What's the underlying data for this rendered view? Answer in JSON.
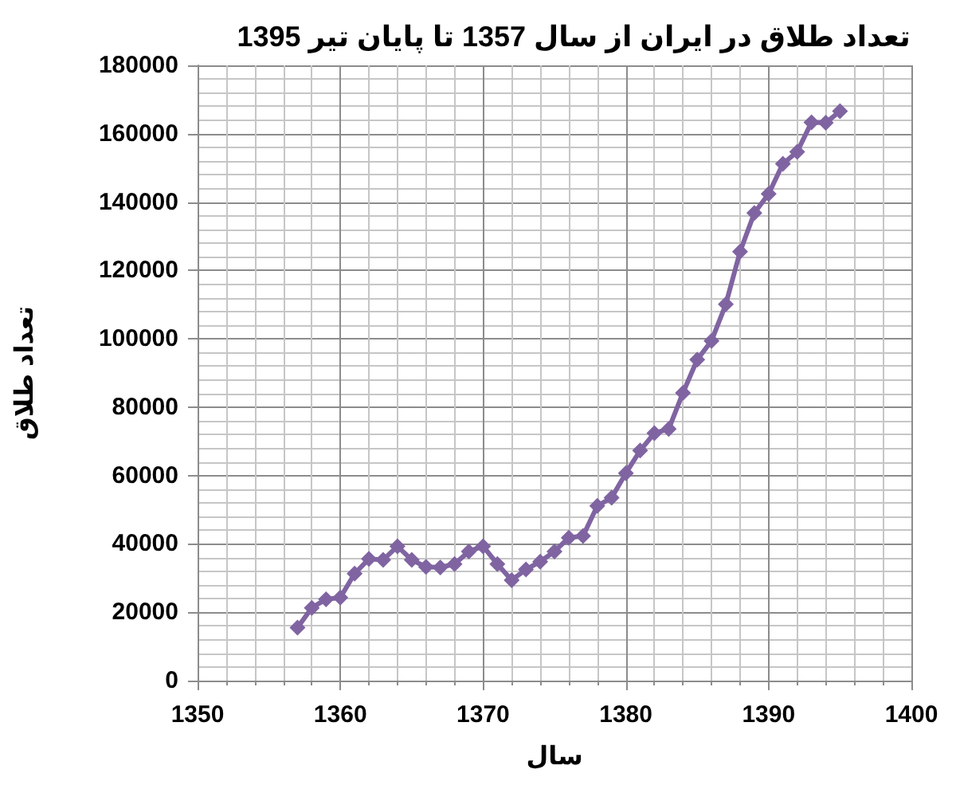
{
  "chart_data": {
    "type": "line",
    "title": "تعداد طلاق در ایران از سال 1357 تا پایان تیر 1395",
    "xlabel": "سال",
    "ylabel": "تعداد طلاق",
    "x": [
      1357,
      1358,
      1359,
      1360,
      1361,
      1362,
      1363,
      1364,
      1365,
      1366,
      1367,
      1368,
      1369,
      1370,
      1371,
      1372,
      1373,
      1374,
      1375,
      1376,
      1377,
      1378,
      1379,
      1380,
      1381,
      1382,
      1383,
      1384,
      1385,
      1386,
      1387,
      1388,
      1389,
      1390,
      1391,
      1392,
      1393,
      1394,
      1395
    ],
    "values": [
      15500,
      21300,
      23800,
      24300,
      31300,
      35600,
      35300,
      39300,
      35300,
      33300,
      33100,
      34100,
      37800,
      39300,
      34100,
      29400,
      32500,
      34800,
      37800,
      41800,
      42300,
      51100,
      53500,
      60700,
      67300,
      72400,
      73600,
      84200,
      93900,
      99400,
      110100,
      125500,
      136800,
      142400,
      151200,
      154700,
      163300,
      163200,
      166600
    ],
    "color": "#8064a2",
    "marker": "diamond",
    "line_style": "solid",
    "xlim": [
      1350,
      1400
    ],
    "xticks": [
      1350,
      1360,
      1370,
      1380,
      1390,
      1400
    ],
    "ylim": [
      0,
      180000
    ],
    "yticks": [
      0,
      20000,
      40000,
      60000,
      80000,
      100000,
      120000,
      140000,
      160000,
      180000
    ],
    "grid": true
  }
}
